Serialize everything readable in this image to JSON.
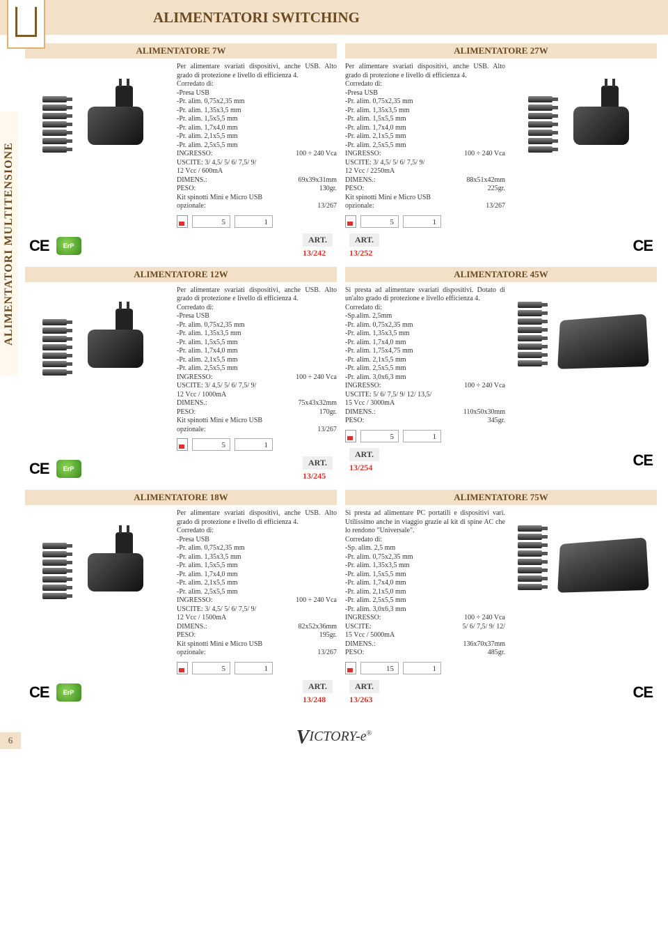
{
  "page_title": "ALIMENTATORI SWITCHING",
  "side_label": "ALIMENTATORI MULTITENSIONE",
  "page_number": "6",
  "brand": "ICTORY-e",
  "art_label": "ART.",
  "cert": {
    "ce": "CE",
    "erp": "ErP"
  },
  "products": [
    {
      "title": "ALIMENTATORE 7W",
      "art": "13/242",
      "img_side": "left",
      "img_type": "small",
      "desc": "Per alimentare svariati dispositivi, anche USB. Alto grado di protezione e livello di efficienza 4.",
      "lines": [
        "Corredato di:",
        "-Presa USB",
        "-Pr. alim. 0,75x2,35 mm",
        "-Pr. alim. 1,35x3,5 mm",
        "-Pr. alim. 1,5x5,5 mm",
        "-Pr. alim. 1,7x4,0 mm",
        "-Pr. alim. 2,1x5,5 mm",
        "-Pr. alim. 2,5x5,5 mm"
      ],
      "kv": [
        [
          "INGRESSO:",
          "100 ÷ 240 Vca"
        ],
        [
          "USCITE: 3/ 4,5/ 5/ 6/ 7,5/ 9/",
          ""
        ],
        [
          "12 Vcc / 600mA",
          ""
        ],
        [
          "DIMENS.:",
          "69x39x31mm"
        ],
        [
          "PESO:",
          "130gr."
        ],
        [
          "Kit spinotti Mini e Micro USB",
          ""
        ],
        [
          "opzionale:",
          "13/267"
        ]
      ],
      "qty": [
        "5",
        "1"
      ],
      "show_erp": true
    },
    {
      "title": "ALIMENTATORE 27W",
      "art": "13/252",
      "img_side": "right",
      "img_type": "small",
      "desc": "Per alimentare svariati dispositivi, anche USB. Alto grado di protezione e livello di efficienza 4.",
      "lines": [
        "Corredato di:",
        "-Presa USB",
        "-Pr. alim. 0,75x2,35 mm",
        "-Pr. alim. 1,35x3,5 mm",
        "-Pr. alim. 1,5x5,5 mm",
        "-Pr. alim. 1,7x4,0 mm",
        "-Pr. alim. 2,1x5,5 mm",
        "-Pr. alim. 2,5x5,5 mm"
      ],
      "kv": [
        [
          "INGRESSO:",
          "100 ÷ 240 Vca"
        ],
        [
          "USCITE: 3/ 4,5/ 5/ 6/ 7,5/ 9/",
          ""
        ],
        [
          "12 Vcc / 2250mA",
          ""
        ],
        [
          "DIMENS.:",
          "88x51x42mm"
        ],
        [
          "PESO:",
          "225gr."
        ],
        [
          "Kit spinotti Mini e Micro USB",
          ""
        ],
        [
          "opzionale:",
          "13/267"
        ]
      ],
      "qty": [
        "5",
        "1"
      ],
      "show_erp": false
    },
    {
      "title": "ALIMENTATORE 12W",
      "art": "13/245",
      "img_side": "left",
      "img_type": "small",
      "desc": "Per alimentare svariati dispositivi, anche USB. Alto grado di protezione e livello di efficienza 4.",
      "lines": [
        "Corredato di:",
        "-Presa USB",
        "-Pr. alim. 0,75x2,35 mm",
        "-Pr. alim. 1,35x3,5 mm",
        "-Pr. alim. 1,5x5,5 mm",
        "-Pr. alim. 1,7x4,0 mm",
        "-Pr. alim. 2,1x5,5 mm",
        "-Pr. alim. 2,5x5,5 mm"
      ],
      "kv": [
        [
          "INGRESSO:",
          "100 ÷ 240 Vca"
        ],
        [
          "USCITE: 3/ 4,5/ 5/ 6/ 7,5/ 9/",
          ""
        ],
        [
          "12 Vcc / 1000mA",
          ""
        ],
        [
          "DIMENS.:",
          "75x43x32mm"
        ],
        [
          "PESO:",
          "170gr."
        ],
        [
          "Kit spinotti Mini e Micro USB",
          ""
        ],
        [
          "opzionale:",
          "13/267"
        ]
      ],
      "qty": [
        "5",
        "1"
      ],
      "show_erp": true
    },
    {
      "title": "ALIMENTATORE 45W",
      "art": "13/254",
      "img_side": "right",
      "img_type": "large",
      "desc": "Si presta ad alimentare svariati dispositivi. Dotato di un'alto grado di protezione e livello efficienza 4.",
      "lines": [
        "Corredato di:",
        "-Sp.alim. 2,5mm",
        "-Pr. alim. 0,75x2,35 mm",
        "-Pr. alim. 1,35x3,5 mm",
        "-Pr. alim. 1,7x4,0 mm",
        "-Pr. alim. 1,75x4,75 mm",
        "-Pr. alim. 2,1x5,5 mm",
        "-Pr. alim. 2,5x5,5 mm",
        "-Pr. alim. 3,0x6,3 mm"
      ],
      "kv": [
        [
          "INGRESSO:",
          "100 ÷ 240 Vca"
        ],
        [
          "USCITE: 5/ 6/ 7,5/ 9/ 12/ 13,5/",
          ""
        ],
        [
          "15 Vcc / 3000mA",
          ""
        ],
        [
          "DIMENS.:",
          "110x50x30mm"
        ],
        [
          "PESO:",
          "345gr."
        ]
      ],
      "qty": [
        "5",
        "1"
      ],
      "show_erp": false
    },
    {
      "title": "ALIMENTATORE 18W",
      "art": "13/248",
      "img_side": "left",
      "img_type": "small",
      "desc": "Per alimentare svariati dispositivi, anche USB. Alto grado di protezione e livello di efficienza 4.",
      "lines": [
        "Corredato di:",
        "-Presa USB",
        "-Pr. alim. 0,75x2,35 mm",
        "-Pr. alim. 1,35x3,5 mm",
        "-Pr. alim. 1,5x5,5 mm",
        "-Pr. alim. 1,7x4,0 mm",
        "-Pr. alim. 2,1x5,5 mm",
        "-Pr. alim. 2,5x5,5 mm"
      ],
      "kv": [
        [
          "INGRESSO:",
          "100 ÷ 240 Vca"
        ],
        [
          "USCITE: 3/ 4,5/ 5/ 6/ 7,5/ 9/",
          ""
        ],
        [
          "12 Vcc / 1500mA",
          ""
        ],
        [
          "DIMENS.:",
          "82x52x36mm"
        ],
        [
          "PESO:",
          "195gr."
        ],
        [
          "Kit spinotti Mini e Micro USB",
          ""
        ],
        [
          "opzionale:",
          "13/267"
        ]
      ],
      "qty": [
        "5",
        "1"
      ],
      "show_erp": true
    },
    {
      "title": "ALIMENTATORE  75W",
      "art": "13/263",
      "img_side": "right",
      "img_type": "large",
      "desc": "Si presta ad alimentare PC portatili e dispositivi vari. Utilissimo anche in viaggio grazie al kit di spine AC che lo rendono \"Universale\".",
      "lines": [
        "Corredato di:",
        "-Sp. alim. 2,5 mm",
        "-Pr. alim. 0,75x2,35 mm",
        "-Pr. alim. 1,35x3,5 mm",
        "-Pr. alim. 1,5x5,5 mm",
        "-Pr. alim. 1,7x4,0 mm",
        "-Pr. alim. 2,1x5,0 mm",
        "-Pr. alim. 2,5x5,5 mm",
        "-Pr. alim. 3,0x6,3 mm"
      ],
      "kv": [
        [
          "INGRESSO:",
          "100 ÷ 240 Vca"
        ],
        [
          "USCITE:",
          "5/ 6/ 7,5/ 9/ 12/"
        ],
        [
          "15 Vcc / 5000mA",
          ""
        ],
        [
          "DIMENS.:",
          "136x70x37mm"
        ],
        [
          "PESO:",
          "485gr."
        ]
      ],
      "qty": [
        "15",
        "1"
      ],
      "show_erp": false
    }
  ]
}
